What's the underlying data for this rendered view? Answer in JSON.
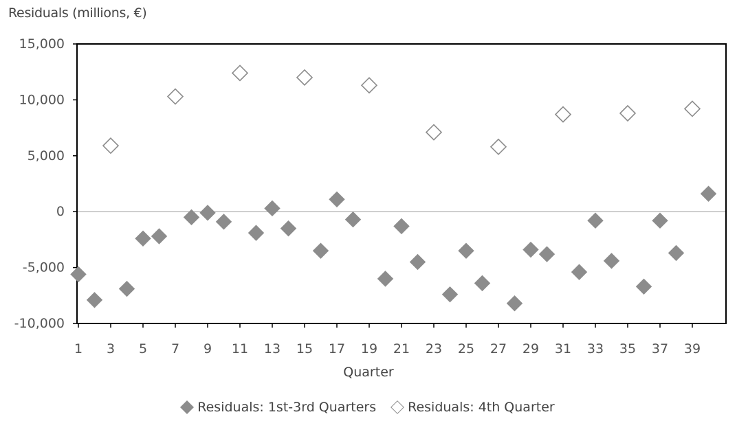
{
  "chart_data": {
    "type": "scatter",
    "title": "",
    "ylabel": "Residuals (millions, €)",
    "xlabel": "Quarter",
    "ylim": [
      -10000,
      15000
    ],
    "xlim": [
      1,
      40
    ],
    "y_ticks": [
      "15,000",
      "10,000",
      "5,000",
      "0",
      "-5,000",
      "-10,000"
    ],
    "y_tick_values": [
      15000,
      10000,
      5000,
      0,
      -5000,
      -10000
    ],
    "x_ticks": [
      "1",
      "3",
      "5",
      "7",
      "9",
      "11",
      "13",
      "15",
      "17",
      "19",
      "21",
      "23",
      "25",
      "27",
      "29",
      "31",
      "33",
      "35",
      "37",
      "39"
    ],
    "x_tick_values": [
      1,
      3,
      5,
      7,
      9,
      11,
      13,
      15,
      17,
      19,
      21,
      23,
      25,
      27,
      29,
      31,
      33,
      35,
      37,
      39
    ],
    "grid": false,
    "legend_position": "bottom",
    "colors": {
      "marker": "#8c8c8c",
      "zero_line": "#bdbdbd",
      "axis": "#000000"
    },
    "series": [
      {
        "name": "Residuals: 1st-3rd Quarters",
        "marker": "filled-diamond",
        "x": [
          1,
          2,
          4,
          5,
          6,
          8,
          9,
          10,
          12,
          13,
          14,
          16,
          17,
          18,
          20,
          21,
          22,
          24,
          25,
          26,
          28,
          29,
          30,
          32,
          33,
          34,
          36,
          37,
          38,
          40
        ],
        "y": [
          -5600,
          -7900,
          -6900,
          -2400,
          -2200,
          -500,
          -100,
          -900,
          -1900,
          300,
          -1500,
          -3500,
          1100,
          -700,
          -6000,
          -1300,
          -4500,
          -7400,
          -3500,
          -6400,
          -8200,
          -3400,
          -3800,
          -5400,
          -800,
          -4400,
          -6700,
          -800,
          -3700,
          1600
        ]
      },
      {
        "name": "Residuals: 4th Quarter",
        "marker": "open-diamond",
        "x": [
          3,
          7,
          11,
          15,
          19,
          23,
          27,
          31,
          35,
          39
        ],
        "y": [
          5900,
          10300,
          12400,
          12000,
          11300,
          7100,
          5800,
          8700,
          8800,
          9200
        ]
      }
    ]
  }
}
